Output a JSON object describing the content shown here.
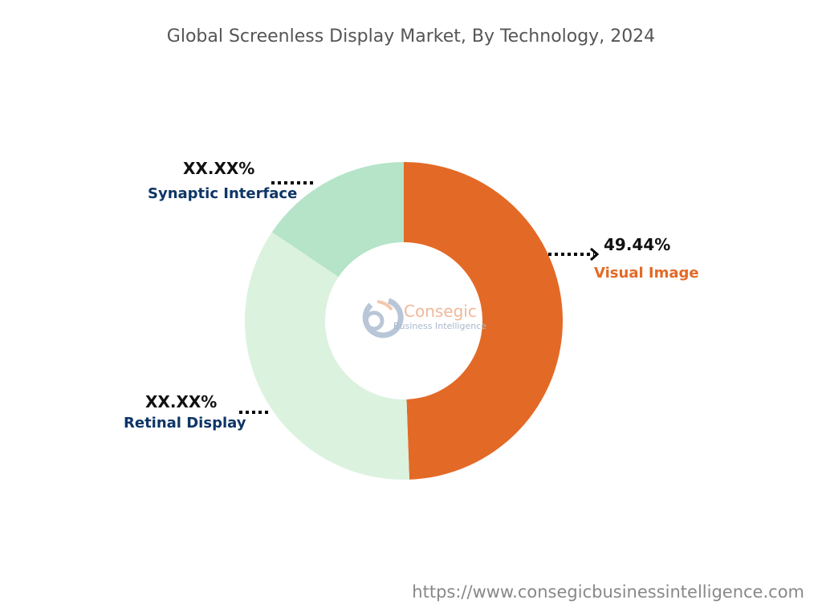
{
  "chart_data": {
    "type": "pie",
    "variant": "donut",
    "title": "Global Screenless Display Market, By Technology, 2024",
    "slices": [
      {
        "name": "Visual Image",
        "value": 49.44,
        "label": "49.44%",
        "color": "#e36a26",
        "label_color": "#e36a26"
      },
      {
        "name": "Retinal Display",
        "value": 35.0,
        "label": "XX.XX%",
        "color": "#dbf2df",
        "label_color": "#0d3566"
      },
      {
        "name": "Synaptic Interface",
        "value": 15.56,
        "label": "XX.XX%",
        "color": "#b5e4c8",
        "label_color": "#0d3566"
      }
    ],
    "start_angle": "top",
    "direction": "clockwise"
  },
  "logo": {
    "name": "Consegic",
    "sub": "Business Intelligence"
  },
  "source_url": "https://www.consegicbusinessintelligence.com"
}
